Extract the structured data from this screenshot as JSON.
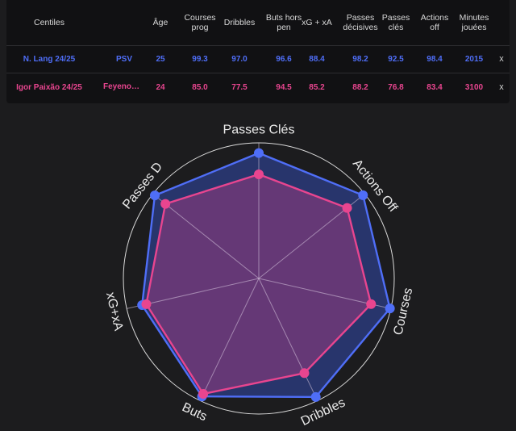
{
  "table": {
    "headers": [
      "Centiles",
      "",
      "Âge",
      "Courses prog",
      "Dribbles",
      "Buts hors pen",
      "xG + xA",
      "Passes décisives",
      "Passes clés",
      "Actions off",
      "Minutes jouées"
    ],
    "rows": [
      {
        "player": "N. Lang 24/25",
        "club": "PSV",
        "age": "25",
        "stats": [
          "99.3",
          "97.0",
          "96.6",
          "88.4",
          "98.2",
          "92.5",
          "98.4"
        ],
        "minutes": "2015",
        "remove": "x",
        "color": "#4f6ef7"
      },
      {
        "player": "Igor Paixão 24/25",
        "club": "Feyenoord",
        "age": "24",
        "stats": [
          "85.0",
          "77.5",
          "94.5",
          "85.2",
          "88.2",
          "76.8",
          "83.4"
        ],
        "minutes": "3100",
        "remove": "x",
        "color": "#e8458f"
      }
    ]
  },
  "chart_data": {
    "type": "radar",
    "axes": [
      "Passes Clés",
      "Actions Off",
      "Courses",
      "Dribbles",
      "Buts",
      "xG+xA",
      "Passes D"
    ],
    "range": [
      0,
      100
    ],
    "series": [
      {
        "name": "N. Lang 24/25",
        "color": "#4f6ef7",
        "fill": "#2a3a7a",
        "values": [
          92.5,
          98.4,
          99.3,
          97.0,
          96.6,
          88.4,
          98.2
        ]
      },
      {
        "name": "Igor Paixão 24/25",
        "color": "#e8458f",
        "fill": "#7a3a7a",
        "values": [
          76.8,
          83.4,
          85.0,
          77.5,
          94.5,
          85.2,
          88.2
        ]
      }
    ]
  }
}
